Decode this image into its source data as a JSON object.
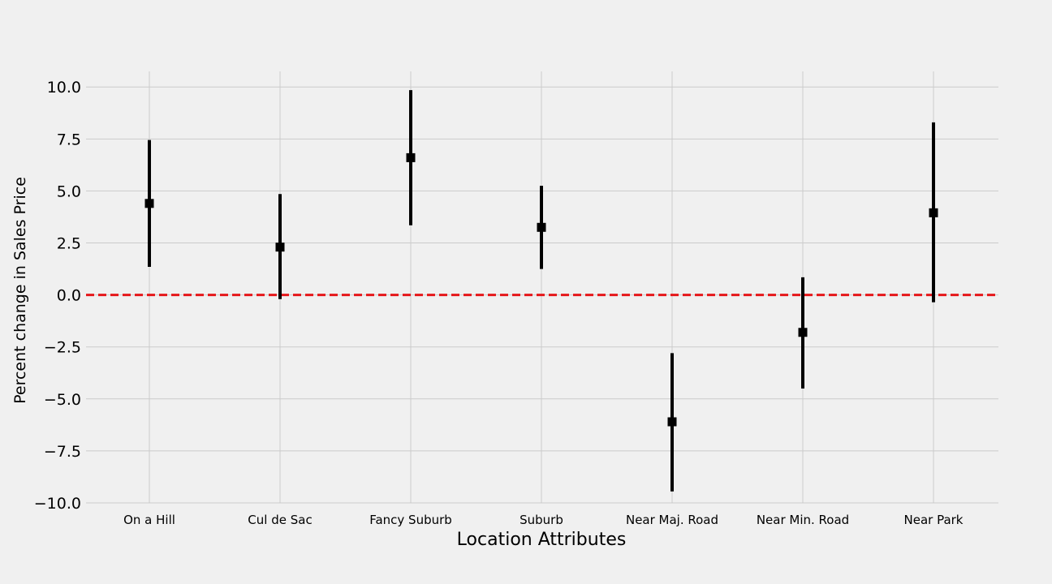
{
  "chart_data": {
    "type": "scatter",
    "title": "",
    "xlabel": "Location Attributes",
    "ylabel": "Percent change in Sales Price",
    "categories": [
      "On a Hill",
      "Cul de Sac",
      "Fancy Suburb",
      "Suburb",
      "Near Maj. Road",
      "Near Min. Road",
      "Near Park"
    ],
    "series": [
      {
        "values": [
          4.4,
          2.3,
          6.6,
          3.25,
          -6.1,
          -1.8,
          3.95
        ],
        "lower": [
          1.35,
          -0.2,
          3.35,
          1.25,
          -9.45,
          -4.5,
          -0.35
        ],
        "upper": [
          7.45,
          4.85,
          9.85,
          5.25,
          -2.8,
          0.85,
          8.3
        ],
        "marker": "square",
        "color": "#000000"
      }
    ],
    "reference_line": {
      "y": 0,
      "style": "dashed",
      "color": "#e5171a"
    },
    "yticks": [
      10.0,
      7.5,
      5.0,
      2.5,
      0.0,
      -2.5,
      -5.0,
      -7.5,
      -10.0
    ],
    "ytick_labels": [
      "10.0",
      "7.5",
      "5.0",
      "2.5",
      "0.0",
      "−2.5",
      "−5.0",
      "−7.5",
      "−10.0"
    ],
    "ylim": [
      -10.0,
      10.75
    ],
    "grid": true,
    "background": "#f0f0f0"
  }
}
